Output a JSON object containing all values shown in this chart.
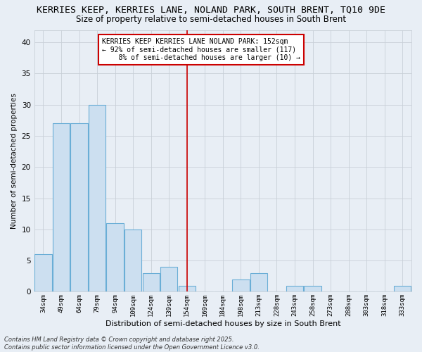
{
  "title": "KERRIES KEEP, KERRIES LANE, NOLAND PARK, SOUTH BRENT, TQ10 9DE",
  "subtitle": "Size of property relative to semi-detached houses in South Brent",
  "xlabel": "Distribution of semi-detached houses by size in South Brent",
  "ylabel": "Number of semi-detached properties",
  "categories": [
    "34sqm",
    "49sqm",
    "64sqm",
    "79sqm",
    "94sqm",
    "109sqm",
    "124sqm",
    "139sqm",
    "154sqm",
    "169sqm",
    "184sqm",
    "198sqm",
    "213sqm",
    "228sqm",
    "243sqm",
    "258sqm",
    "273sqm",
    "288sqm",
    "303sqm",
    "318sqm",
    "333sqm"
  ],
  "values": [
    6,
    27,
    27,
    30,
    11,
    10,
    3,
    4,
    1,
    0,
    0,
    2,
    3,
    0,
    1,
    1,
    0,
    0,
    0,
    0,
    1
  ],
  "bar_color": "#ccdff0",
  "bar_edge_color": "#6aaed6",
  "grid_color": "#c8d0d8",
  "background_color": "#e8eef5",
  "vline_x_index": 8,
  "vline_color": "#cc0000",
  "annotation_line1": "KERRIES KEEP KERRIES LANE NOLAND PARK: 152sqm",
  "annotation_line2": "← 92% of semi-detached houses are smaller (117)",
  "annotation_line3": "    8% of semi-detached houses are larger (10) →",
  "annotation_box_color": "#ffffff",
  "annotation_box_edge": "#cc0000",
  "footer": "Contains HM Land Registry data © Crown copyright and database right 2025.\nContains public sector information licensed under the Open Government Licence v3.0.",
  "ylim": [
    0,
    42
  ],
  "yticks": [
    0,
    5,
    10,
    15,
    20,
    25,
    30,
    35,
    40
  ],
  "title_fontsize": 9.5,
  "subtitle_fontsize": 8.5,
  "xlabel_fontsize": 8,
  "ylabel_fontsize": 7.5,
  "tick_fontsize": 6.5,
  "annot_fontsize": 7,
  "footer_fontsize": 6
}
